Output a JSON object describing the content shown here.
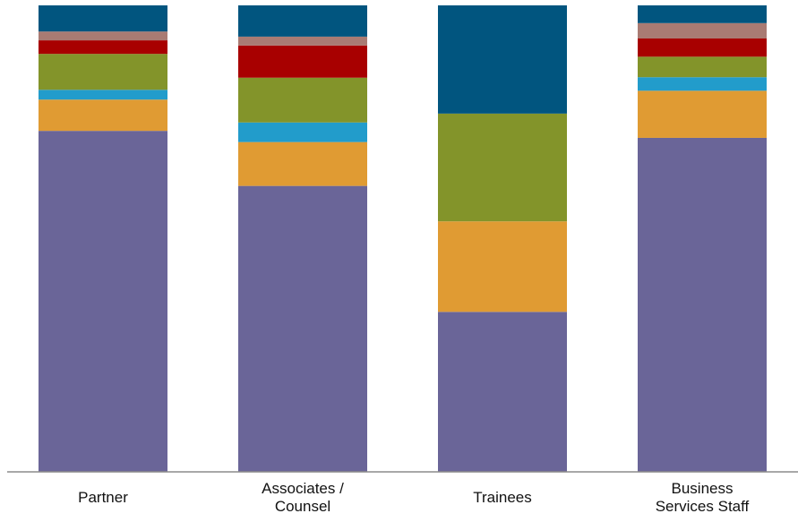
{
  "chart_data": {
    "type": "bar",
    "stacked": true,
    "normalized": true,
    "categories": [
      [
        "Partner"
      ],
      [
        "Associates /",
        "Counsel"
      ],
      [
        "Trainees"
      ],
      [
        "Business",
        "Services Staff"
      ]
    ],
    "series": [
      {
        "color": "#6a6598",
        "values": [
          73.1,
          61.3,
          34.3,
          71.6
        ]
      },
      {
        "color": "#e09b33",
        "values": [
          6.7,
          9.4,
          19.4,
          10.1
        ]
      },
      {
        "color": "#229ccb",
        "values": [
          2.1,
          4.2,
          0.0,
          2.9
        ]
      },
      {
        "color": "#83942a",
        "values": [
          7.7,
          9.6,
          23.1,
          4.4
        ]
      },
      {
        "color": "#a80000",
        "values": [
          2.9,
          6.9,
          0.0,
          3.9
        ]
      },
      {
        "color": "#a97b73",
        "values": [
          1.9,
          1.9,
          0.0,
          3.3
        ]
      },
      {
        "color": "#01557f",
        "values": [
          5.6,
          6.7,
          23.2,
          3.8
        ]
      }
    ],
    "ylim": [
      0,
      100
    ],
    "grid": false,
    "legend": "none"
  }
}
